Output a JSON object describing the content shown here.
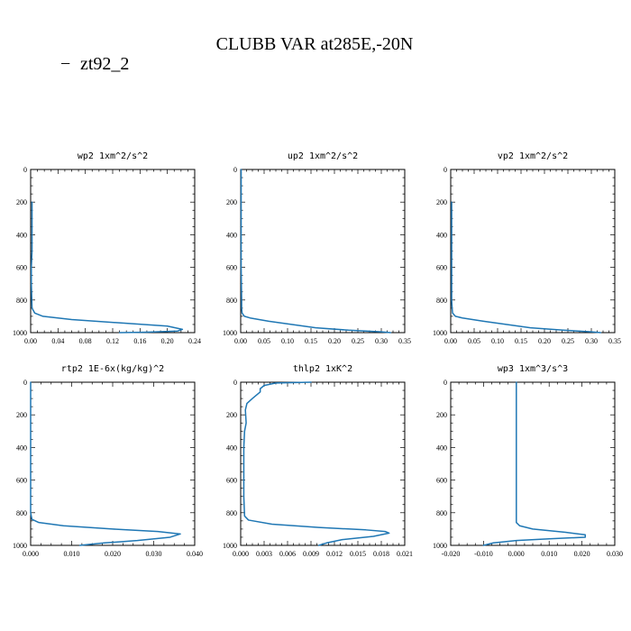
{
  "title": "CLUBB VAR at285E,-20N",
  "legend": {
    "label": "zt92_2",
    "marker": "−",
    "color": "#1f77b4"
  },
  "chart_data": [
    {
      "type": "line",
      "title": "wp2  1xm^2/s^2",
      "xlim": [
        0.0,
        0.24
      ],
      "xticks": [
        0.0,
        0.04,
        0.08,
        0.12,
        0.16,
        0.2,
        0.24
      ],
      "xtick_labels": [
        "0.00",
        "0.04",
        "0.08",
        "0.12",
        "0.16",
        "0.20",
        "0.24"
      ],
      "ylim": [
        1000,
        0
      ],
      "yticks": [
        0,
        200,
        400,
        600,
        800,
        1000
      ],
      "series": [
        {
          "name": "zt92_2",
          "x": [
            0.002,
            0.002,
            0.002,
            0.002,
            0.001,
            0.001,
            0.002,
            0.006,
            0.018,
            0.06,
            0.13,
            0.2,
            0.222,
            0.215,
            0.17,
            0.13
          ],
          "y": [
            200,
            300,
            400,
            500,
            600,
            700,
            850,
            880,
            900,
            920,
            940,
            960,
            980,
            990,
            997,
            1000
          ]
        }
      ]
    },
    {
      "type": "line",
      "title": "up2  1xm^2/s^2",
      "xlim": [
        0.0,
        0.35
      ],
      "xticks": [
        0.0,
        0.05,
        0.1,
        0.15,
        0.2,
        0.25,
        0.3,
        0.35
      ],
      "xtick_labels": [
        "0.00",
        "0.05",
        "0.10",
        "0.15",
        "0.20",
        "0.25",
        "0.30",
        "0.35"
      ],
      "ylim": [
        1000,
        0
      ],
      "yticks": [
        0,
        200,
        400,
        600,
        800,
        1000
      ],
      "series": [
        {
          "name": "zt92_2",
          "x": [
            0.001,
            0.001,
            0.001,
            0.001,
            0.002,
            0.002,
            0.003,
            0.008,
            0.02,
            0.06,
            0.11,
            0.16,
            0.23,
            0.3,
            0.32
          ],
          "y": [
            0,
            200,
            400,
            600,
            800,
            850,
            880,
            900,
            910,
            930,
            950,
            970,
            985,
            995,
            1000
          ]
        }
      ]
    },
    {
      "type": "line",
      "title": "vp2  1xm^2/s^2",
      "xlim": [
        0.0,
        0.35
      ],
      "xticks": [
        0.0,
        0.05,
        0.1,
        0.15,
        0.2,
        0.25,
        0.3,
        0.35
      ],
      "xtick_labels": [
        "0.00",
        "0.05",
        "0.10",
        "0.15",
        "0.20",
        "0.25",
        "0.30",
        "0.35"
      ],
      "ylim": [
        1000,
        0
      ],
      "yticks": [
        0,
        200,
        400,
        600,
        800,
        1000
      ],
      "series": [
        {
          "name": "zt92_2",
          "x": [
            0.002,
            0.002,
            0.002,
            0.002,
            0.002,
            0.003,
            0.004,
            0.01,
            0.025,
            0.07,
            0.12,
            0.17,
            0.24,
            0.3,
            0.32
          ],
          "y": [
            200,
            300,
            400,
            600,
            800,
            850,
            880,
            900,
            910,
            930,
            950,
            970,
            985,
            995,
            1000
          ]
        }
      ]
    },
    {
      "type": "line",
      "title": "rtp2  1E-6x(kg/kg)^2",
      "xlim": [
        0.0,
        0.04
      ],
      "xticks": [
        0.0,
        0.01,
        0.02,
        0.03,
        0.04
      ],
      "xtick_labels": [
        "0.000",
        "0.010",
        "0.020",
        "0.030",
        "0.040"
      ],
      "ylim": [
        1000,
        0
      ],
      "yticks": [
        0,
        200,
        400,
        600,
        800,
        1000
      ],
      "series": [
        {
          "name": "zt92_2",
          "x": [
            0.0,
            0.0,
            0.0,
            0.0,
            0.0,
            0.0003,
            0.002,
            0.008,
            0.02,
            0.031,
            0.0365,
            0.034,
            0.026,
            0.018,
            0.012
          ],
          "y": [
            0,
            200,
            400,
            600,
            800,
            840,
            860,
            880,
            900,
            915,
            930,
            950,
            970,
            985,
            1000
          ]
        }
      ]
    },
    {
      "type": "line",
      "title": "thlp2  1xK^2",
      "xlim": [
        0.0,
        0.021
      ],
      "xticks": [
        0.0,
        0.003,
        0.006,
        0.009,
        0.012,
        0.015,
        0.018,
        0.021
      ],
      "xtick_labels": [
        "0.000",
        "0.003",
        "0.006",
        "0.009",
        "0.012",
        "0.015",
        "0.018",
        "0.021"
      ],
      "ylim": [
        1000,
        0
      ],
      "yticks": [
        0,
        200,
        400,
        600,
        800,
        1000
      ],
      "series": [
        {
          "name": "zt92_2",
          "x": [
            0.009,
            0.0045,
            0.003,
            0.0025,
            0.0025,
            0.0015,
            0.0008,
            0.0006,
            0.0007,
            0.0005,
            0.0004,
            0.0004,
            0.0004,
            0.0004,
            0.0005,
            0.001,
            0.004,
            0.01,
            0.016,
            0.0185,
            0.019,
            0.017,
            0.013,
            0.011,
            0.01
          ],
          "y": [
            0,
            5,
            20,
            40,
            60,
            100,
            130,
            170,
            250,
            300,
            400,
            500,
            600,
            700,
            820,
            845,
            870,
            890,
            905,
            915,
            925,
            945,
            965,
            985,
            1000
          ]
        }
      ]
    },
    {
      "type": "line",
      "title": "wp3  1xm^3/s^3",
      "xlim": [
        -0.02,
        0.03
      ],
      "xticks": [
        -0.02,
        -0.01,
        0.0,
        0.01,
        0.02,
        0.03
      ],
      "xtick_labels": [
        "-0.020",
        "-0.010",
        "0.000",
        "0.010",
        "0.020",
        "0.030"
      ],
      "ylim": [
        1000,
        0
      ],
      "yticks": [
        0,
        200,
        400,
        600,
        800,
        1000
      ],
      "series": [
        {
          "name": "zt92_2",
          "x": [
            0.0,
            0.0,
            0.0,
            0.0,
            0.0,
            0.0,
            0.001,
            0.005,
            0.015,
            0.021,
            0.021,
            0.01,
            0.0,
            -0.007,
            -0.01
          ],
          "y": [
            0,
            200,
            400,
            600,
            800,
            860,
            880,
            900,
            920,
            935,
            950,
            960,
            970,
            985,
            1000
          ]
        }
      ]
    }
  ]
}
